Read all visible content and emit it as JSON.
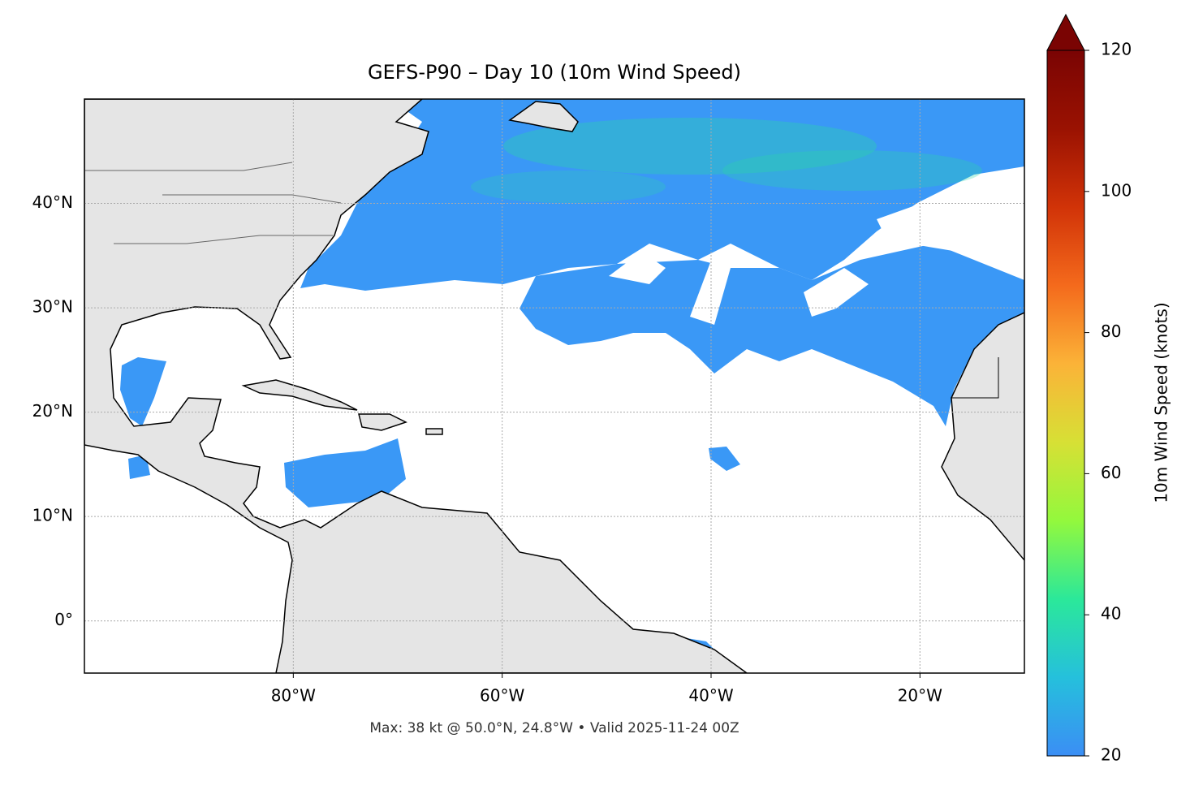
{
  "chart_data": {
    "type": "map",
    "title": "GEFS-P90 – Day 10 (10m Wind Speed)",
    "footnote": "Max: 38 kt @ 50.0°N, 24.8°W • Valid 2025-11-24 00Z",
    "xlim": [
      -100,
      -10
    ],
    "ylim": [
      -5,
      50
    ],
    "xticks": [
      {
        "value": -80,
        "label": "80°W"
      },
      {
        "value": -60,
        "label": "60°W"
      },
      {
        "value": -40,
        "label": "40°W"
      },
      {
        "value": -20,
        "label": "20°W"
      }
    ],
    "yticks": [
      {
        "value": 0,
        "label": "0°"
      },
      {
        "value": 10,
        "label": "10°N"
      },
      {
        "value": 20,
        "label": "20°N"
      },
      {
        "value": 30,
        "label": "30°N"
      },
      {
        "value": 40,
        "label": "40°N"
      }
    ],
    "grid": true,
    "colorbar": {
      "label": "10m Wind Speed (knots)",
      "lim": [
        20,
        120
      ],
      "ticks": [
        20,
        40,
        60,
        80,
        100,
        120
      ],
      "colors": [
        "#3b8ef5",
        "#25c0dc",
        "#2be89a",
        "#93f83d",
        "#d7e035",
        "#fbb338",
        "#f46a1c",
        "#d13308",
        "#9a1202",
        "#7a0403"
      ]
    }
  }
}
